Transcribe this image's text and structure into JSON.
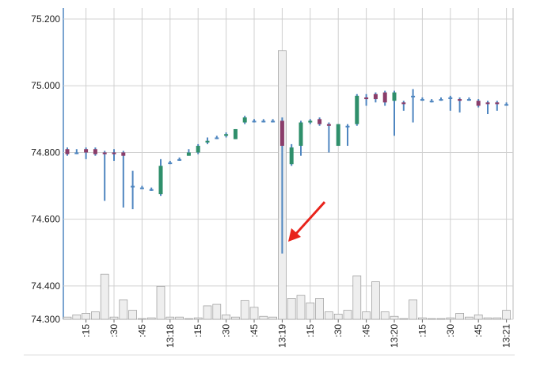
{
  "chart_data": {
    "type": "candlestick",
    "categories": [
      null,
      null,
      ":15",
      null,
      null,
      ":30",
      null,
      null,
      ":45",
      null,
      null,
      "13:18",
      null,
      null,
      ":15",
      null,
      null,
      ":30",
      null,
      null,
      ":45",
      null,
      null,
      "13:19",
      null,
      null,
      ":15",
      null,
      null,
      ":30",
      null,
      null,
      ":45",
      null,
      null,
      "13:20",
      null,
      null,
      ":15",
      null,
      null,
      ":30",
      null,
      null,
      ":45",
      null,
      null,
      "13:21"
    ],
    "open": [
      74.81,
      74.8,
      74.81,
      74.81,
      74.8,
      74.8,
      74.8,
      74.7,
      74.695,
      74.69,
      74.675,
      74.77,
      74.78,
      74.79,
      74.8,
      74.83,
      74.845,
      74.85,
      74.84,
      74.89,
      74.895,
      74.895,
      74.895,
      74.895,
      74.765,
      74.82,
      74.89,
      74.9,
      74.885,
      74.82,
      74.88,
      74.885,
      74.965,
      74.975,
      74.98,
      74.955,
      74.95,
      74.97,
      74.96,
      74.955,
      74.96,
      74.965,
      74.96,
      74.96,
      74.955,
      74.95,
      74.95,
      74.945
    ],
    "high": [
      74.815,
      74.81,
      74.815,
      74.815,
      74.805,
      74.81,
      74.805,
      74.745,
      74.7,
      74.695,
      74.78,
      74.775,
      74.785,
      74.81,
      74.825,
      74.845,
      74.85,
      74.86,
      74.87,
      74.91,
      74.9,
      74.9,
      74.9,
      74.905,
      74.825,
      74.895,
      74.9,
      74.905,
      74.89,
      74.885,
      74.885,
      74.975,
      74.975,
      74.98,
      74.985,
      74.985,
      74.955,
      74.99,
      74.965,
      74.96,
      74.965,
      74.97,
      74.965,
      74.965,
      74.96,
      74.955,
      74.955,
      74.95
    ],
    "low": [
      74.79,
      74.795,
      74.78,
      74.79,
      74.655,
      74.775,
      74.635,
      74.63,
      74.69,
      74.685,
      74.67,
      74.765,
      74.775,
      74.79,
      74.795,
      74.825,
      74.84,
      74.845,
      74.84,
      74.885,
      74.89,
      74.89,
      74.89,
      74.497,
      74.76,
      74.79,
      74.885,
      74.88,
      74.8,
      74.82,
      74.82,
      74.88,
      74.94,
      74.95,
      74.94,
      74.85,
      74.925,
      74.89,
      74.955,
      74.95,
      74.955,
      74.925,
      74.92,
      74.955,
      74.935,
      74.915,
      74.925,
      74.94
    ],
    "close": [
      74.795,
      74.8,
      74.8,
      74.795,
      74.795,
      74.795,
      74.79,
      74.7,
      74.695,
      74.69,
      74.76,
      74.77,
      74.78,
      74.8,
      74.82,
      74.835,
      74.845,
      74.855,
      74.87,
      74.905,
      74.895,
      74.895,
      74.895,
      74.82,
      74.815,
      74.89,
      74.895,
      74.885,
      74.88,
      74.885,
      74.88,
      74.97,
      74.96,
      74.96,
      74.95,
      74.98,
      74.945,
      74.97,
      74.96,
      74.955,
      74.96,
      74.965,
      74.955,
      74.96,
      74.94,
      74.945,
      74.945,
      74.945
    ],
    "volume": [
      3,
      6,
      8,
      10,
      60,
      3,
      26,
      12,
      1,
      2,
      44,
      3,
      3,
      1,
      2,
      18,
      20,
      6,
      3,
      25,
      16,
      4,
      3,
      358,
      28,
      32,
      22,
      28,
      10,
      7,
      12,
      58,
      10,
      50,
      10,
      4,
      1,
      26,
      2,
      1,
      1,
      2,
      8,
      3,
      6,
      2,
      2,
      12
    ],
    "up_color": "#2f8f6b",
    "down_color": "#8a3d6a",
    "wick_color": "#4f86c0",
    "volume_color": "#eeeeee",
    "ylim": [
      74.3,
      75.2
    ],
    "yticks": [
      {
        "value": 74.3,
        "label": "74.300"
      },
      {
        "value": 74.4,
        "label": "74.400"
      },
      {
        "value": 74.6,
        "label": "74.600"
      },
      {
        "value": 74.8,
        "label": "74.800"
      },
      {
        "value": 75.0,
        "label": "75.000"
      },
      {
        "value": 75.2,
        "label": "75.200"
      }
    ],
    "y2lim": [
      0,
      400
    ],
    "grid": true
  }
}
